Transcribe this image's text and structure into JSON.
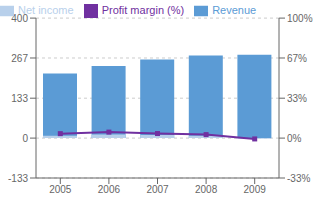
{
  "chart_data": {
    "type": "bar",
    "categories": [
      "2005",
      "2006",
      "2007",
      "2008",
      "2009"
    ],
    "series": [
      {
        "name": "Revenue",
        "type": "bar",
        "color": "#5b9bd5",
        "values": [
          215,
          240,
          262,
          275,
          278
        ]
      },
      {
        "name": "Net income",
        "type": "bar",
        "color": "#b8d0eb",
        "values": [
          8,
          12,
          10,
          8,
          -2
        ]
      },
      {
        "name": "Profit margin (%)",
        "type": "line",
        "axis": "y2",
        "color": "#7030a0",
        "marker": "square",
        "values": [
          3.7,
          5.0,
          3.8,
          2.9,
          -0.7
        ]
      }
    ],
    "ylim": [
      -133,
      400
    ],
    "yticks": [
      -133,
      0,
      133,
      267,
      400
    ],
    "y2lim": [
      -33.25,
      100
    ],
    "y2ticks": [
      {
        "value": -33.25,
        "label": "-33%"
      },
      {
        "value": 0,
        "label": "0%"
      },
      {
        "value": 33.25,
        "label": "33%"
      },
      {
        "value": 66.75,
        "label": "67%"
      },
      {
        "value": 100,
        "label": "100%"
      }
    ],
    "grid": true,
    "legend": "upper left"
  }
}
